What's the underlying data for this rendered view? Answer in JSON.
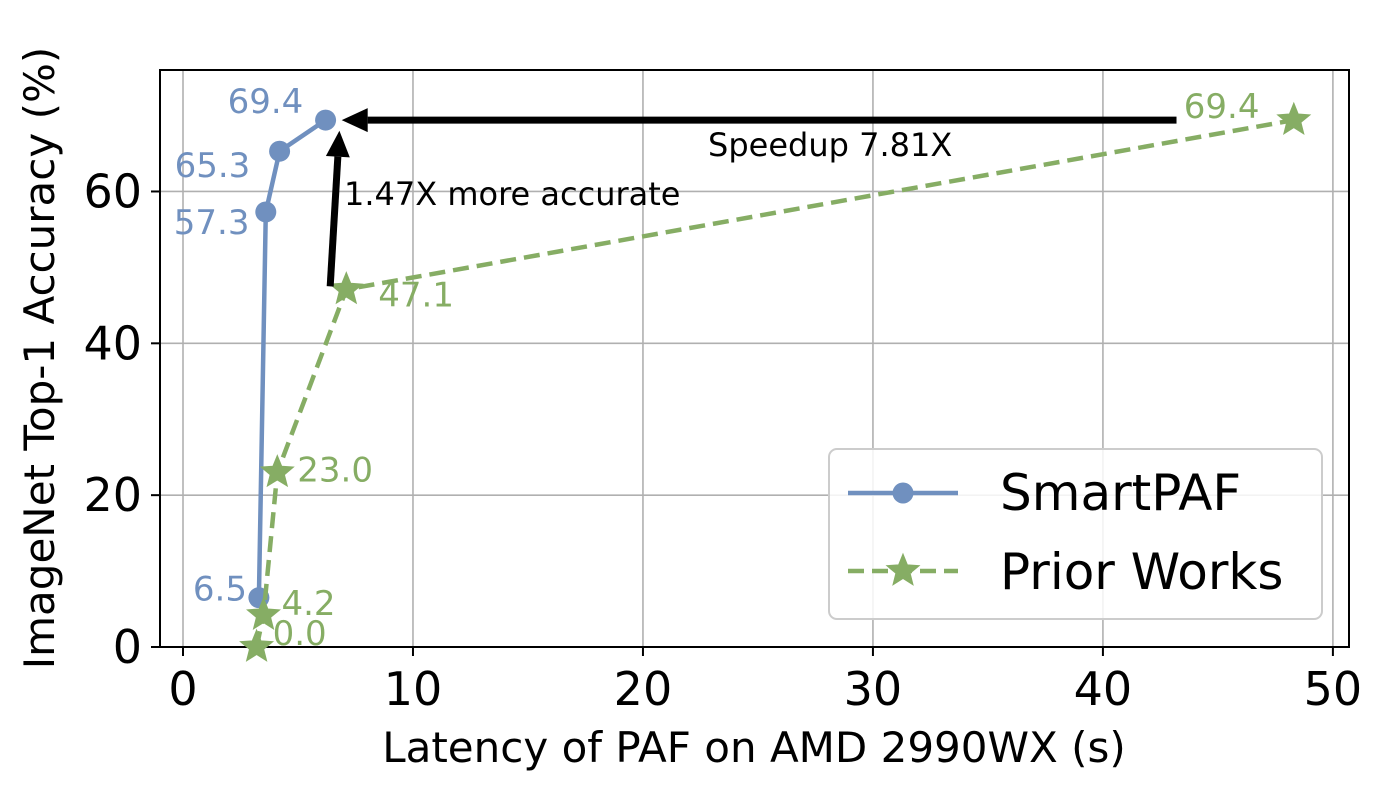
{
  "chart_data": {
    "type": "line",
    "xlabel": "Latency of PAF on AMD 2990WX (s)",
    "ylabel": "ImageNet Top-1 Accuracy (%)",
    "xlim": [
      -1,
      50.7
    ],
    "ylim": [
      0,
      76
    ],
    "xticks": [
      0,
      10,
      20,
      30,
      40,
      50
    ],
    "yticks": [
      0,
      20,
      40,
      60
    ],
    "grid": true,
    "legend_position": "lower-right",
    "series": [
      {
        "name": "SmartPAF",
        "color": "#7090bf",
        "linestyle": "solid",
        "marker": "circle",
        "points": [
          {
            "x": 3.3,
            "y": 6.5,
            "label": "6.5"
          },
          {
            "x": 3.6,
            "y": 57.3,
            "label": "57.3"
          },
          {
            "x": 4.2,
            "y": 65.3,
            "label": "65.3"
          },
          {
            "x": 6.2,
            "y": 69.4,
            "label": "69.4"
          }
        ]
      },
      {
        "name": "Prior Works",
        "color": "#86ad64",
        "linestyle": "dashed",
        "marker": "star",
        "points": [
          {
            "x": 3.2,
            "y": 0.0,
            "label": "0.0"
          },
          {
            "x": 3.5,
            "y": 4.2,
            "label": "4.2"
          },
          {
            "x": 4.1,
            "y": 23.0,
            "label": "23.0"
          },
          {
            "x": 7.1,
            "y": 47.1,
            "label": "47.1"
          },
          {
            "x": 48.3,
            "y": 69.4,
            "label": "69.4"
          }
        ]
      }
    ],
    "annotations": [
      {
        "text": "Speedup 7.81X",
        "from": {
          "x": 43.2,
          "y": 69.4
        },
        "to": {
          "x": 6.9,
          "y": 69.4
        }
      },
      {
        "text": "1.47X more accurate",
        "from": {
          "x": 6.4,
          "y": 47.5
        },
        "to": {
          "x": 6.8,
          "y": 68.0
        }
      }
    ]
  }
}
